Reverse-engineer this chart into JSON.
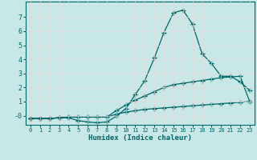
{
  "xlabel": "Humidex (Indice chaleur)",
  "bg_color": "#c8e8e8",
  "line_color": "#006666",
  "grid_color": "#e8d8d8",
  "xlim": [
    -0.5,
    23.5
  ],
  "ylim": [
    -0.65,
    8.1
  ],
  "ytick_vals": [
    0,
    1,
    2,
    3,
    4,
    5,
    6,
    7
  ],
  "ytick_labels": [
    "-0",
    "1",
    "2",
    "3",
    "4",
    "5",
    "6",
    "7"
  ],
  "xtick_labels": [
    "0",
    "1",
    "2",
    "3",
    "4",
    "5",
    "6",
    "7",
    "8",
    "9",
    "10",
    "11",
    "12",
    "13",
    "14",
    "15",
    "16",
    "17",
    "18",
    "19",
    "20",
    "21",
    "22",
    "23"
  ],
  "curve1_x": [
    0,
    1,
    2,
    3,
    4,
    5,
    6,
    7,
    8,
    9,
    10,
    11,
    12,
    13,
    14,
    15,
    16,
    17,
    18,
    19,
    20,
    21,
    22,
    23
  ],
  "curve1_y": [
    -0.2,
    -0.2,
    -0.2,
    -0.15,
    -0.15,
    -0.35,
    -0.45,
    -0.5,
    -0.45,
    -0.05,
    0.5,
    1.5,
    2.5,
    4.1,
    5.9,
    7.3,
    7.5,
    6.5,
    4.4,
    3.7,
    2.8,
    2.8,
    2.4,
    1.8
  ],
  "curve2_x": [
    0,
    1,
    2,
    3,
    4,
    5,
    6,
    7,
    8,
    9,
    10,
    11,
    12,
    13,
    14,
    15,
    16,
    17,
    18,
    19,
    20,
    21,
    22,
    23
  ],
  "curve2_y": [
    -0.2,
    -0.2,
    -0.2,
    -0.15,
    -0.1,
    -0.1,
    -0.1,
    -0.1,
    -0.1,
    0.35,
    0.75,
    1.1,
    1.4,
    1.7,
    2.0,
    2.2,
    2.3,
    2.4,
    2.5,
    2.6,
    2.7,
    2.75,
    2.8,
    1.0
  ],
  "curve3_x": [
    0,
    1,
    2,
    3,
    4,
    5,
    6,
    7,
    8,
    9,
    10,
    11,
    12,
    13,
    14,
    15,
    16,
    17,
    18,
    19,
    20,
    21,
    22,
    23
  ],
  "curve3_y": [
    -0.2,
    -0.2,
    -0.2,
    -0.15,
    -0.1,
    -0.1,
    -0.1,
    -0.1,
    -0.1,
    0.1,
    0.25,
    0.35,
    0.45,
    0.5,
    0.55,
    0.6,
    0.65,
    0.7,
    0.75,
    0.8,
    0.85,
    0.9,
    0.95,
    1.0
  ]
}
